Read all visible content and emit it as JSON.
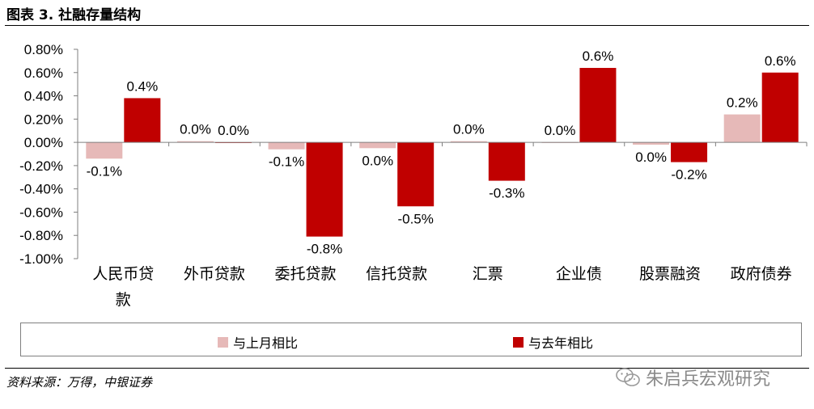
{
  "header": {
    "title": "图表 3. 社融存量结构"
  },
  "chart_data": {
    "type": "bar",
    "categories": [
      "人民币贷款",
      "外币贷款",
      "委托贷款",
      "信托贷款",
      "汇票",
      "企业债",
      "股票融资",
      "政府债券"
    ],
    "series": [
      {
        "name": "与上月相比",
        "color": "#E6B9B8",
        "values": [
          -0.0014,
          0.0001,
          -0.0006,
          -0.0005,
          0.0001,
          0.0,
          -0.0002,
          0.0024
        ],
        "labels": [
          "-0.1%",
          "0.0%",
          "-0.1%",
          "0.0%",
          "0.0%",
          "0.0%",
          "0.0%",
          "0.2%"
        ]
      },
      {
        "name": "与去年相比",
        "color": "#C00000",
        "values": [
          0.0038,
          0.0,
          -0.0081,
          -0.0055,
          -0.0033,
          0.0064,
          -0.0017,
          0.006
        ],
        "labels": [
          "0.4%",
          "0.0%",
          "-0.8%",
          "-0.5%",
          "-0.3%",
          "0.6%",
          "-0.2%",
          "0.6%"
        ]
      }
    ],
    "ylim": [
      -0.01,
      0.008
    ],
    "yticks": [
      0.008,
      0.006,
      0.004,
      0.002,
      0.0,
      -0.002,
      -0.004,
      -0.006,
      -0.008,
      -0.01
    ],
    "ytick_labels": [
      "0.80%",
      "0.60%",
      "0.40%",
      "0.20%",
      "0.00%",
      "-0.20%",
      "-0.40%",
      "-0.60%",
      "-0.80%",
      "-1.00%"
    ],
    "legend": "bottom",
    "grid": false
  },
  "footer": {
    "source": "资料来源：万得，中银证券",
    "watermark": "朱启兵宏观研究"
  }
}
